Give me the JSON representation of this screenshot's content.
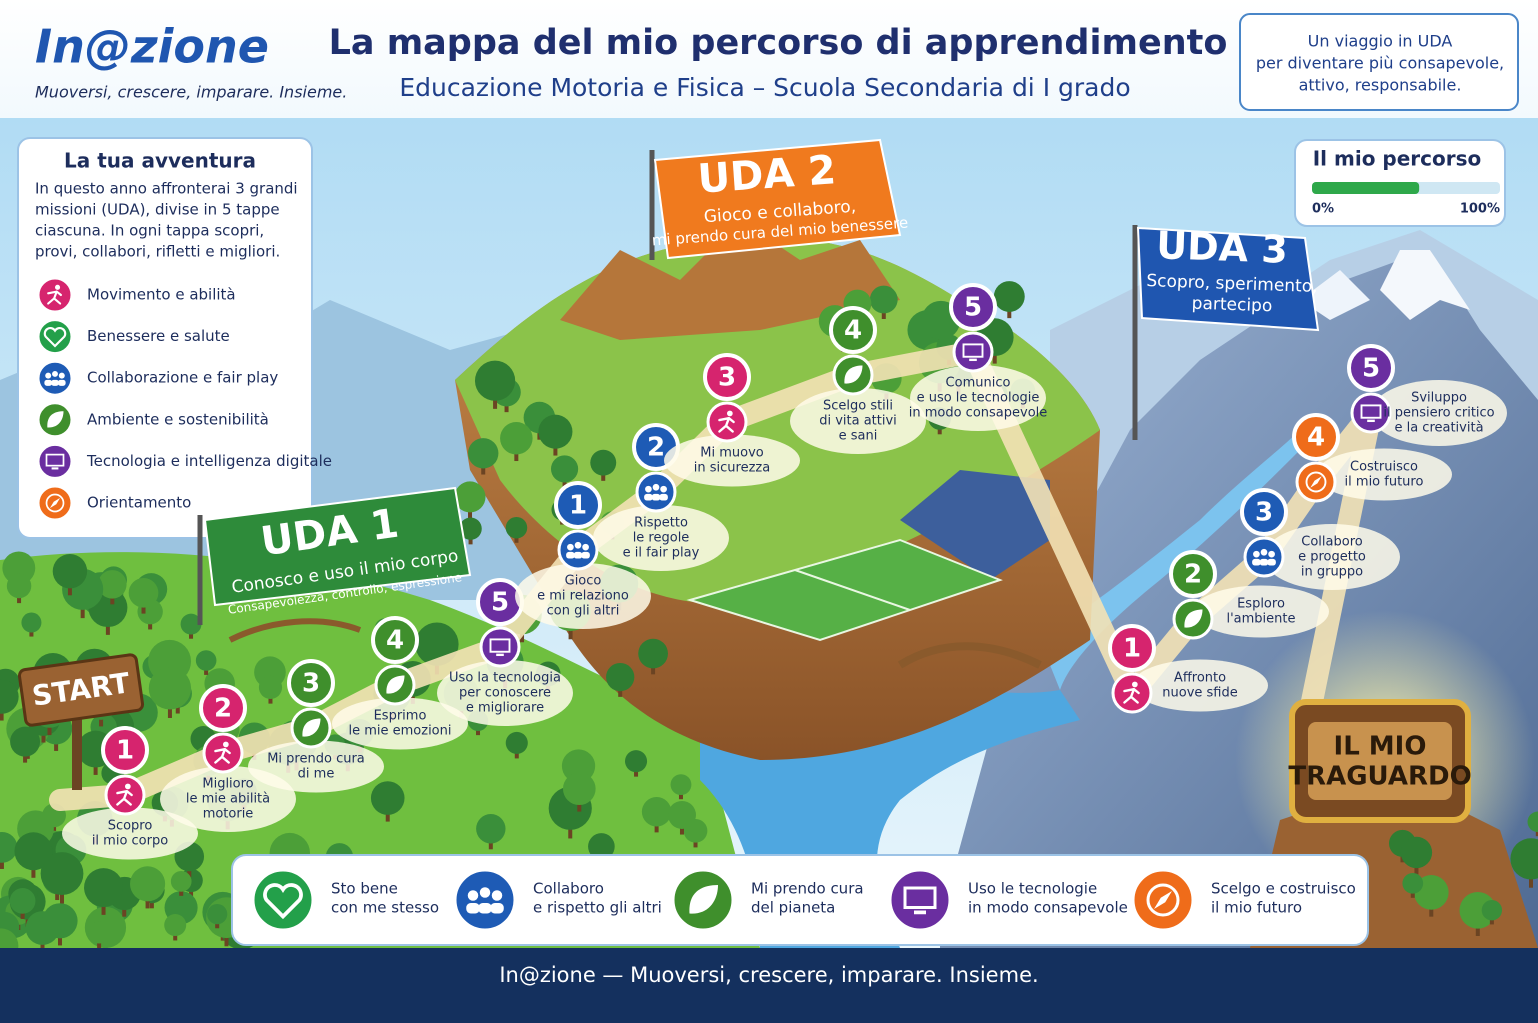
{
  "header": {
    "logo": "In@zione",
    "tagline": "Muoversi, crescere, imparare. Insieme.",
    "title": "La mappa del mio percorso di apprendimento",
    "subtitle": "Educazione Motoria e Fisica – Scuola Secondaria di I grado",
    "note": [
      "Un viaggio in UDA",
      "per diventare più consapevole,",
      "attivo, responsabile."
    ]
  },
  "adventure": {
    "title": "La tua avventura",
    "text": [
      "In questo anno affronterai 3 grandi",
      "missioni (UDA), divise in 5 tappe",
      "ciascuna. In ogni tappa scopri,",
      "provi, collabori, rifletti e migliori."
    ],
    "legend": [
      {
        "label": "Movimento e abilità",
        "color": "#d6246e",
        "icon": "runner"
      },
      {
        "label": "Benessere e salute",
        "color": "#23a04a",
        "icon": "heart"
      },
      {
        "label": "Collaborazione e fair play",
        "color": "#1e5bb5",
        "icon": "people"
      },
      {
        "label": "Ambiente e sostenibilità",
        "color": "#3f8f2c",
        "icon": "leaf"
      },
      {
        "label": "Tecnologia e intelligenza digitale",
        "color": "#6a2ea0",
        "icon": "monitor"
      },
      {
        "label": "Orientamento",
        "color": "#ef6c1a",
        "icon": "compass"
      }
    ]
  },
  "progress": {
    "title": "Il mio percorso",
    "value": 57,
    "start": {
      "value": 0,
      "label": "0%"
    },
    "end": {
      "value": 100,
      "label": "100%"
    }
  },
  "udas": [
    {
      "title": "UDA 1",
      "subtitle": [
        "Conosco e uso il mio corpo",
        "Consapevolezza, controllo, espressione"
      ],
      "color": "#2e8b3a",
      "steps": [
        {
          "number": 1,
          "label": [
            "Scopro",
            "il mio corpo"
          ],
          "color": "#d6246e"
        },
        {
          "number": 2,
          "label": [
            "Miglioro",
            "le mie abilità",
            "motorie"
          ],
          "color": "#d6246e"
        },
        {
          "number": 3,
          "label": [
            "Mi prendo cura",
            "di me"
          ],
          "color": "#3f8f2c"
        },
        {
          "number": 4,
          "label": [
            "Esprimo",
            "le mie emozioni"
          ],
          "color": "#3f8f2c"
        },
        {
          "number": 5,
          "label": [
            "Uso la tecnologia",
            "per conoscere",
            "e migliorare"
          ],
          "color": "#6a2ea0"
        }
      ]
    },
    {
      "title": "UDA 2",
      "subtitle": [
        "Gioco e collaboro,",
        "mi prendo cura del mio benessere"
      ],
      "color": "#f07a1e",
      "steps": [
        {
          "number": 1,
          "label": [
            "Gioco",
            "e mi relaziono",
            "con gli altri"
          ],
          "color": "#1e5bb5"
        },
        {
          "number": 2,
          "label": [
            "Rispetto",
            "le regole",
            "e il fair play"
          ],
          "color": "#1e5bb5"
        },
        {
          "number": 3,
          "label": [
            "Mi muovo",
            "in sicurezza"
          ],
          "color": "#d6246e"
        },
        {
          "number": 4,
          "label": [
            "Scelgo stili",
            "di vita attivi",
            "e sani"
          ],
          "color": "#3f8f2c"
        },
        {
          "number": 5,
          "label": [
            "Comunico",
            "e uso le tecnologie",
            "in modo consapevole"
          ],
          "color": "#6a2ea0"
        }
      ]
    },
    {
      "title": "UDA 3",
      "subtitle": [
        "Scopro, sperimento,",
        "partecipo"
      ],
      "color": "#1f56b0",
      "steps": [
        {
          "number": 1,
          "label": [
            "Affronto",
            "nuove sfide"
          ],
          "color": "#d6246e"
        },
        {
          "number": 2,
          "label": [
            "Esploro",
            "l'ambiente"
          ],
          "color": "#3f8f2c"
        },
        {
          "number": 3,
          "label": [
            "Collaboro",
            "e progetto",
            "in gruppo"
          ],
          "color": "#1e5bb5"
        },
        {
          "number": 4,
          "label": [
            "Costruisco",
            "il mio futuro"
          ],
          "color": "#ef6c1a"
        },
        {
          "number": 5,
          "label": [
            "Sviluppo",
            "il pensiero critico",
            "e la creatività"
          ],
          "color": "#6a2ea0"
        }
      ]
    }
  ],
  "start": "START",
  "goal": [
    "IL MIO",
    "TRAGUARDO"
  ],
  "values": [
    {
      "label": [
        "Sto bene",
        "con me stesso"
      ],
      "color": "#23a04a",
      "icon": "heart"
    },
    {
      "label": [
        "Collaboro",
        "e rispetto gli altri"
      ],
      "color": "#1e5bb5",
      "icon": "people"
    },
    {
      "label": [
        "Mi prendo cura",
        "del pianeta"
      ],
      "color": "#3f8f2c",
      "icon": "leaf"
    },
    {
      "label": [
        "Uso le tecnologie",
        "in modo consapevole"
      ],
      "color": "#6a2ea0",
      "icon": "monitor"
    },
    {
      "label": [
        "Scelgo e costruisco",
        "il mio futuro"
      ],
      "color": "#ef6c1a",
      "icon": "compass"
    }
  ],
  "footer": "In@zione — Muoversi, crescere, imparare. Insieme."
}
